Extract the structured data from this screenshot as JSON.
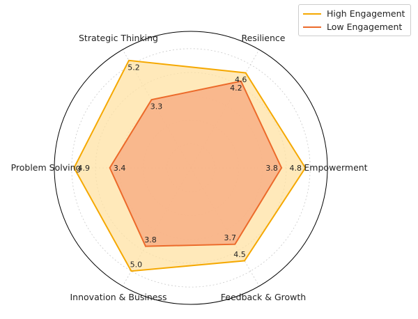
{
  "chart_data": {
    "type": "radar",
    "categories": [
      "Empowerment",
      "Resilience",
      "Strategic Thinking",
      "Problem Solving",
      "Innovation & Business",
      "Feedback & Growth"
    ],
    "rmax": 5.2,
    "rings": [
      1,
      2,
      3,
      4,
      5
    ],
    "series": [
      {
        "name": "High Engagement",
        "values": [
          4.8,
          4.6,
          5.2,
          4.9,
          5.0,
          4.5
        ],
        "color": "#f5a800",
        "fill": "#ffe1a3"
      },
      {
        "name": "Low Engagement",
        "values": [
          3.8,
          4.2,
          3.3,
          3.4,
          3.8,
          3.7
        ],
        "color": "#ec6a2a",
        "fill": "#f7ab82"
      }
    ],
    "legend_position": "top-right"
  }
}
